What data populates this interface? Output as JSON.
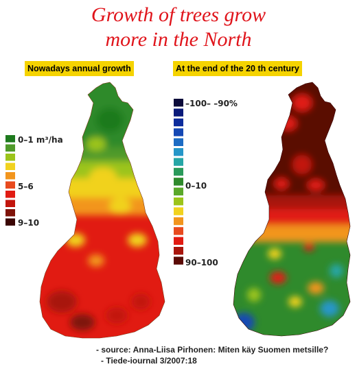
{
  "title_line1": "Growth of trees grow",
  "title_line2": "more in the North",
  "left_map": {
    "label": "Nowadays annual growth",
    "legend": {
      "top_label": "0–1 m³/ha",
      "mid_label": "5–6",
      "bottom_label": "9–10",
      "colors": [
        "#1e7a1e",
        "#4f9a2a",
        "#9cc41a",
        "#f1d21e",
        "#f2951d",
        "#e84a1e",
        "#e11b12",
        "#c2150c",
        "#7e1208",
        "#3a0503"
      ]
    }
  },
  "right_map": {
    "label": "At the end of  the 20 th century",
    "legend": {
      "top_label": "–100– –90%",
      "mid_label": "0–10",
      "bottom_label": "90–100",
      "colors": [
        "#0b0b3a",
        "#0a1a7a",
        "#0d2c9c",
        "#1548b4",
        "#1d6cc4",
        "#2596c8",
        "#26a6a6",
        "#2a9a5a",
        "#2f8a2c",
        "#5aa82a",
        "#9cc41a",
        "#f1d21e",
        "#f2951d",
        "#e84a1e",
        "#e11b12",
        "#a8150c",
        "#5a0a05"
      ]
    }
  },
  "source_line1": "- source: Anna-Liisa Pirhonen: Miten käy Suomen metsille?",
  "source_line2": "- Tiede-iournal 3/2007:18"
}
